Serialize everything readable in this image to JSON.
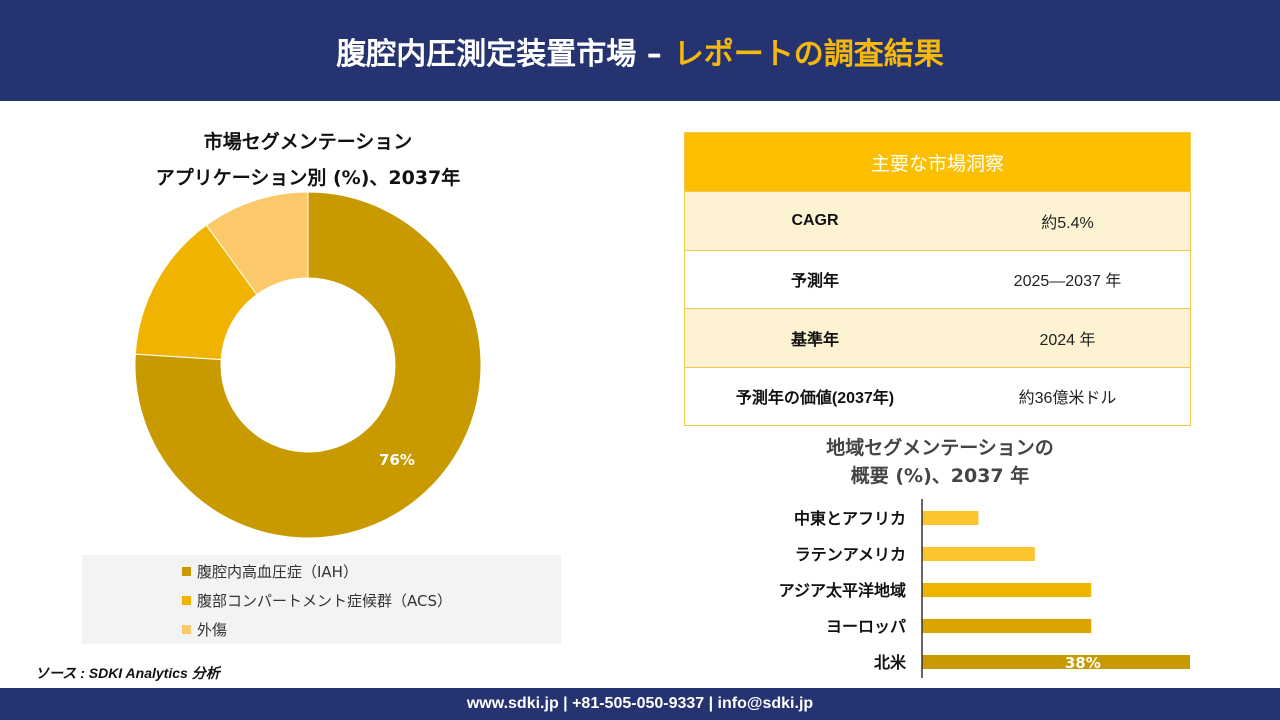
{
  "header": {
    "title_main": "腹腔内圧測定装置市場 –",
    "title_accent": "レポートの調査結果"
  },
  "colors": {
    "navy": "#253470",
    "accent": "#f6b90b",
    "iah": "#c89a00",
    "acs": "#f0b400",
    "other": "#fcc96a"
  },
  "chart_data": [
    {
      "type": "pie",
      "title": "市場セグメンテーション",
      "subtitle": "アプリケーション別 (%)、2037年",
      "categories": [
        "腹腔内高血圧症（IAH）",
        "腹部コンパートメント症候群（ACS）",
        "外傷"
      ],
      "values": [
        76,
        14,
        10
      ],
      "data_labels": [
        "76%"
      ],
      "donut": true,
      "legend_position": "bottom"
    },
    {
      "type": "bar",
      "orientation": "horizontal",
      "title": "地域セグメンテーションの",
      "subtitle": "概要 (%)、2037 年",
      "categories": [
        "中東とアフリカ",
        "ラテンアメリカ",
        "アジア太平洋地域",
        "ヨーロッパ",
        "北米"
      ],
      "values": [
        8,
        16,
        24,
        24,
        38
      ],
      "data_labels": [
        "",
        "",
        "",
        "",
        "38%"
      ],
      "grid": false
    }
  ],
  "insights": {
    "title": "主要な市場洞察",
    "rows": [
      {
        "label": "CAGR",
        "value": "約5.4%"
      },
      {
        "label": "予測年",
        "value": "2025—2037 年"
      },
      {
        "label": "基準年",
        "value": "2024 年"
      },
      {
        "label": "予測年の価値(2037年)",
        "value": "約36億米ドル"
      }
    ]
  },
  "source": "ソース : SDKI Analytics 分析",
  "footer": {
    "text": "www.sdki.jp | +81-505-050-9337 | info@sdki.jp"
  }
}
